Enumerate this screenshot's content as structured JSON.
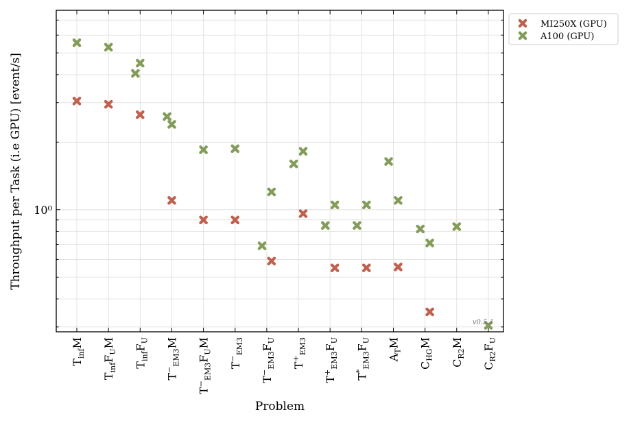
{
  "chart_data": {
    "type": "scatter",
    "xlabel": "Problem",
    "ylabel": "Throughput per Task (i.e GPU) [event/s]",
    "y_scale": "log",
    "ylim": [
      0.2853,
      7.743
    ],
    "ytick_labels": [
      {
        "value": 1,
        "label": "10⁰"
      }
    ],
    "grid": true,
    "legend_placement": "outside top-right",
    "watermark": "v0.5.1",
    "categories": [
      {
        "base": "T",
        "sub": "inf",
        "sup": "",
        "rest": "M"
      },
      {
        "base": "T",
        "sub": "inf",
        "sup": "",
        "rest": "F",
        "rest_sub": "U",
        "rest2": "M"
      },
      {
        "base": "T",
        "sub": "inf",
        "sup": "",
        "rest": "F",
        "rest_sub": "U"
      },
      {
        "base": "T",
        "sub": "EM3",
        "sup": "−",
        "rest": "M"
      },
      {
        "base": "T",
        "sub": "EM3",
        "sup": "−",
        "rest": "F",
        "rest_sub": "U",
        "rest2": "M"
      },
      {
        "base": "T",
        "sub": "EM3",
        "sup": "−"
      },
      {
        "base": "T",
        "sub": "EM3",
        "sup": "−",
        "rest": "F",
        "rest_sub": "U"
      },
      {
        "base": "T",
        "sub": "EM3",
        "sup": "+"
      },
      {
        "base": "T",
        "sub": "EM3",
        "sup": "+",
        "rest": "F",
        "rest_sub": "U"
      },
      {
        "base": "T",
        "sub": "EM3",
        "sup": "*",
        "rest": "F",
        "rest_sub": "U"
      },
      {
        "base": "A",
        "sub": "T",
        "sup": "",
        "rest": "M"
      },
      {
        "base": "C",
        "sub": "HG",
        "sup": "",
        "rest": "M"
      },
      {
        "base": "C",
        "sub": "R2",
        "sup": "",
        "rest": "M"
      },
      {
        "base": "C",
        "sub": "R2",
        "sup": "",
        "rest": "F",
        "rest_sub": "U"
      }
    ],
    "series": [
      {
        "name": "MI250X (GPU)",
        "color": "#c0604e",
        "points": [
          {
            "x": 0,
            "y": 3.05,
            "offset": 0
          },
          {
            "x": 1,
            "y": 2.95,
            "offset": 0
          },
          {
            "x": 2,
            "y": 2.65,
            "offset": 0
          },
          {
            "x": 3,
            "y": 1.1,
            "offset": 0
          },
          {
            "x": 4,
            "y": 0.9,
            "offset": 0
          },
          {
            "x": 5,
            "y": 0.9,
            "offset": 0
          },
          {
            "x": 6,
            "y": 0.59,
            "offset": 0.15
          },
          {
            "x": 7,
            "y": 0.96,
            "offset": 0.15
          },
          {
            "x": 8,
            "y": 0.55,
            "offset": 0.15
          },
          {
            "x": 9,
            "y": 0.55,
            "offset": 0.15
          },
          {
            "x": 10,
            "y": 0.555,
            "offset": 0.15
          },
          {
            "x": 11,
            "y": 0.35,
            "offset": 0.15
          }
        ]
      },
      {
        "name": "A100 (GPU)",
        "color": "#849c59",
        "points": [
          {
            "x": 0,
            "y": 5.55,
            "offset": 0
          },
          {
            "x": 1,
            "y": 5.3,
            "offset": 0
          },
          {
            "x": 2,
            "y": 4.05,
            "offset": -0.15
          },
          {
            "x": 2,
            "y": 4.5,
            "offset": 0
          },
          {
            "x": 3,
            "y": 2.6,
            "offset": -0.15
          },
          {
            "x": 3,
            "y": 2.4,
            "offset": 0
          },
          {
            "x": 4,
            "y": 1.85,
            "offset": 0
          },
          {
            "x": 5,
            "y": 1.87,
            "offset": 0
          },
          {
            "x": 6,
            "y": 0.69,
            "offset": -0.15
          },
          {
            "x": 6,
            "y": 1.2,
            "offset": 0.15
          },
          {
            "x": 7,
            "y": 1.6,
            "offset": -0.15
          },
          {
            "x": 7,
            "y": 1.82,
            "offset": 0.15
          },
          {
            "x": 8,
            "y": 0.85,
            "offset": -0.15
          },
          {
            "x": 8,
            "y": 1.05,
            "offset": 0.15
          },
          {
            "x": 9,
            "y": 0.85,
            "offset": -0.15
          },
          {
            "x": 9,
            "y": 1.05,
            "offset": 0.15
          },
          {
            "x": 10,
            "y": 1.64,
            "offset": -0.15
          },
          {
            "x": 10,
            "y": 1.1,
            "offset": 0.15
          },
          {
            "x": 11,
            "y": 0.82,
            "offset": -0.15
          },
          {
            "x": 11,
            "y": 0.71,
            "offset": 0.15
          },
          {
            "x": 12,
            "y": 0.84,
            "offset": 0
          },
          {
            "x": 13,
            "y": 0.305,
            "offset": 0
          }
        ]
      }
    ]
  }
}
